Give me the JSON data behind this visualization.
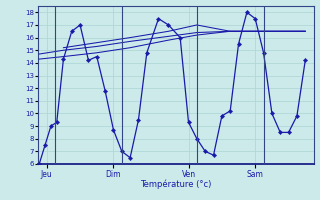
{
  "xlabel": "Température (°c)",
  "bg_color": "#cceaea",
  "line_color": "#1a1aaa",
  "grid_color": "#b0d8d8",
  "tick_label_color": "#1a1aaa",
  "axis_label_color": "#1a1aaa",
  "ylim": [
    6,
    18.5
  ],
  "yticks": [
    6,
    7,
    8,
    9,
    10,
    11,
    12,
    13,
    14,
    15,
    16,
    17,
    18
  ],
  "day_labels": [
    "Jeu",
    "Dim",
    "Ven",
    "Sam"
  ],
  "day_positions": [
    0.5,
    4.5,
    9.0,
    13.0
  ],
  "vline_positions": [
    1,
    5,
    9.5,
    13.5
  ],
  "xmin": 0,
  "xmax": 16.5,
  "series1_x": [
    0.05,
    0.4,
    0.75,
    1.1,
    1.5,
    2.0,
    2.5,
    3.0,
    3.5,
    4.0,
    4.5,
    5.0,
    5.5,
    6.0,
    6.5,
    7.2,
    7.8,
    8.5,
    9.0,
    9.5,
    10.0,
    10.5,
    11.0,
    11.5,
    12.0,
    12.5,
    13.0,
    13.5,
    14.0,
    14.5,
    15.0,
    15.5,
    16.0
  ],
  "series1_y": [
    6,
    7.5,
    9,
    9.3,
    14.3,
    16.5,
    17.0,
    14.2,
    14.5,
    11.8,
    8.7,
    7.0,
    6.5,
    9.5,
    14.8,
    17.5,
    17.0,
    16.0,
    9.3,
    8.0,
    7.0,
    6.7,
    9.8,
    10.2,
    15.5,
    18.0,
    17.5,
    14.8,
    10.0,
    8.5,
    8.5,
    9.8,
    14.2
  ],
  "series2_x": [
    0.05,
    1.5,
    3.5,
    5.5,
    7.8,
    9.5,
    11.5,
    13.5,
    16.0
  ],
  "series2_y": [
    14.3,
    14.5,
    14.8,
    15.2,
    15.8,
    16.2,
    16.5,
    16.5,
    16.5
  ],
  "series3_x": [
    0.05,
    1.5,
    3.5,
    5.5,
    7.8,
    9.5,
    11.5,
    13.5,
    16.0
  ],
  "series3_y": [
    14.7,
    15.0,
    15.3,
    15.7,
    16.1,
    16.4,
    16.5,
    16.5,
    16.5
  ],
  "series4_x": [
    1.5,
    3.5,
    5.5,
    7.8,
    9.5,
    11.5,
    13.5,
    16.0
  ],
  "series4_y": [
    15.2,
    15.6,
    16.0,
    16.5,
    17.0,
    16.5,
    16.5,
    16.5
  ]
}
